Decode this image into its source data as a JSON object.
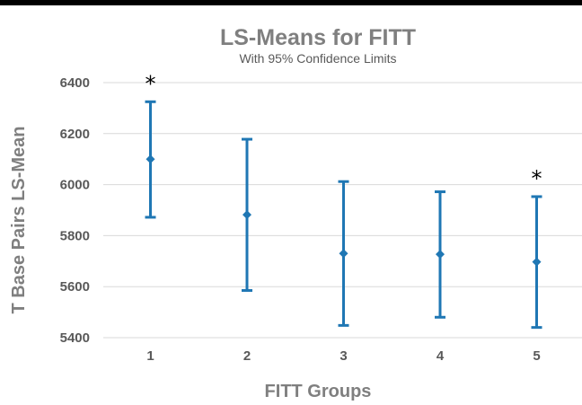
{
  "chart_data": {
    "type": "scatter",
    "title": "LS-Means for FITT",
    "subtitle": "With 95% Confidence Limits",
    "xlabel": "FITT Groups",
    "ylabel": "T Base Pairs LS-Mean",
    "categories": [
      "1",
      "2",
      "3",
      "4",
      "5"
    ],
    "values": [
      6100,
      5882,
      5730,
      5727,
      5697
    ],
    "lower": [
      5872,
      5585,
      5448,
      5480,
      5440
    ],
    "upper": [
      6325,
      6178,
      6012,
      5972,
      5953
    ],
    "significant": [
      "*",
      "",
      "",
      "",
      "*"
    ],
    "ylim": [
      5400,
      6400
    ],
    "yticks": [
      "5400",
      "5600",
      "5800",
      "6000",
      "6200",
      "6400"
    ],
    "grid": true,
    "colors": {
      "series": "#1f77b4",
      "grid": "#d9d9d9",
      "top_rule": "#000000"
    }
  }
}
